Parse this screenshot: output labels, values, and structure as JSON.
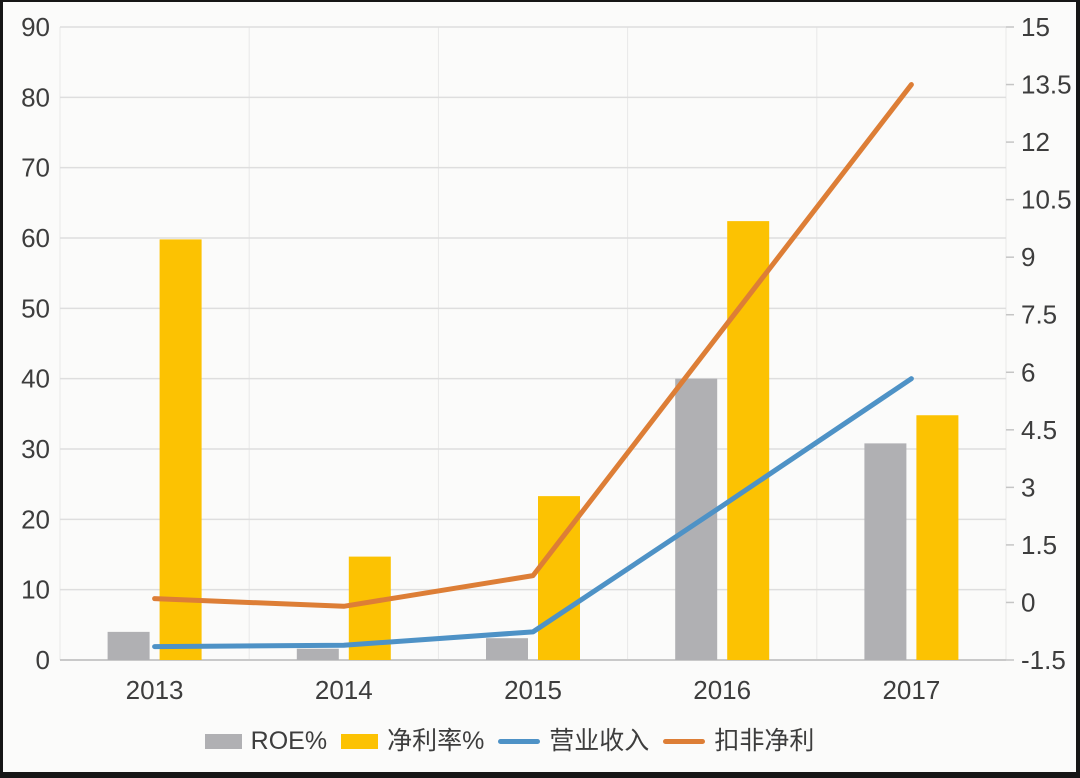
{
  "chart_data": {
    "type": "bar",
    "subtype": "combo-dual-axis (grouped bars + lines)",
    "title": "",
    "categories": [
      "2013",
      "2014",
      "2015",
      "2016",
      "2017"
    ],
    "series": [
      {
        "name": "ROE%",
        "type": "bar",
        "axis": "left",
        "color": "#b0b0b3",
        "values": [
          4.0,
          1.6,
          3.1,
          40.0,
          30.8
        ]
      },
      {
        "name": "净利率%",
        "type": "bar",
        "axis": "left",
        "color": "#fcc202",
        "values": [
          59.8,
          14.7,
          23.3,
          62.4,
          34.8
        ]
      },
      {
        "name": "营业收入",
        "type": "line",
        "axis": "left",
        "color": "#4e92c6",
        "values": [
          1.9,
          2.1,
          4.0,
          21.9,
          40.0
        ]
      },
      {
        "name": "扣非净利",
        "type": "line",
        "axis": "right",
        "color": "#dd7e36",
        "values": [
          0.1,
          -0.1,
          0.7,
          7.1,
          13.5
        ]
      }
    ],
    "left_axis": {
      "min": 0,
      "max": 90,
      "step": 10,
      "ticks": [
        "90",
        "80",
        "70",
        "60",
        "50",
        "40",
        "30",
        "20",
        "10",
        "0"
      ]
    },
    "right_axis": {
      "min": -1.5,
      "max": 15,
      "step": 1.5,
      "ticks": [
        "15",
        "13.5",
        "12",
        "10.5",
        "9",
        "7.5",
        "6",
        "4.5",
        "3",
        "1.5",
        "0",
        "-1.5"
      ]
    },
    "xlabel": "",
    "ylabel": "",
    "grid": "horizontal major lines (left axis) + vertical category-boundary lines",
    "legend_position": "bottom"
  },
  "legend": {
    "items": [
      {
        "label": "ROE%"
      },
      {
        "label": "净利率%"
      },
      {
        "label": "营业收入"
      },
      {
        "label": "扣非净利"
      }
    ]
  },
  "colors": {
    "background": "#fbfbfa",
    "frame": "#161616",
    "gridline": "#dedede",
    "baseline": "#c9c9c9",
    "tick": "#c5c5c5",
    "text": "#3d3d3d"
  }
}
